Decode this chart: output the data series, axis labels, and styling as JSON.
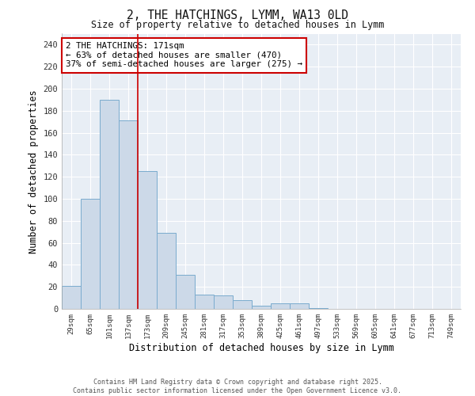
{
  "title": "2, THE HATCHINGS, LYMM, WA13 0LD",
  "subtitle": "Size of property relative to detached houses in Lymm",
  "xlabel": "Distribution of detached houses by size in Lymm",
  "ylabel": "Number of detached properties",
  "bar_color": "#ccd9e8",
  "bar_edge_color": "#7aabce",
  "categories": [
    "29sqm",
    "65sqm",
    "101sqm",
    "137sqm",
    "173sqm",
    "209sqm",
    "245sqm",
    "281sqm",
    "317sqm",
    "353sqm",
    "389sqm",
    "425sqm",
    "461sqm",
    "497sqm",
    "533sqm",
    "569sqm",
    "605sqm",
    "641sqm",
    "677sqm",
    "713sqm",
    "749sqm"
  ],
  "values": [
    21,
    100,
    190,
    171,
    125,
    69,
    31,
    13,
    12,
    8,
    3,
    5,
    5,
    1,
    0,
    0,
    0,
    0,
    0,
    0,
    0
  ],
  "vline_index": 4,
  "vline_color": "#cc0000",
  "annotation_text": "2 THE HATCHINGS: 171sqm\n← 63% of detached houses are smaller (470)\n37% of semi-detached houses are larger (275) →",
  "annotation_box_color": "#cc0000",
  "ylim": [
    0,
    250
  ],
  "yticks": [
    0,
    20,
    40,
    60,
    80,
    100,
    120,
    140,
    160,
    180,
    200,
    220,
    240
  ],
  "footer": "Contains HM Land Registry data © Crown copyright and database right 2025.\nContains public sector information licensed under the Open Government Licence v3.0.",
  "background_color": "#ffffff",
  "plot_bg_color": "#e8eef5",
  "grid_color": "#ffffff"
}
